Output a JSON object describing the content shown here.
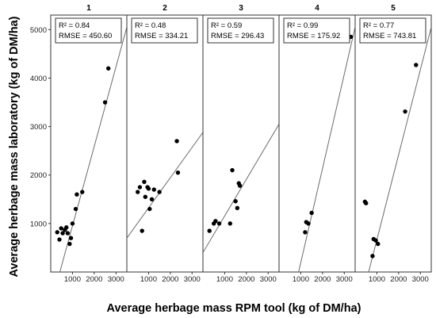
{
  "figure": {
    "ylabel": "Average herbage mass laboratory (kg of DM/ha)",
    "xlabel": "Average herbage mass RPM tool (kg of DM/ha)"
  },
  "chart_data": [
    {
      "type": "scatter",
      "title": "1",
      "annotations": [
        "R² = 0.84",
        "RMSE = 450.60"
      ],
      "xlim": [
        0,
        3500
      ],
      "ylim": [
        0,
        5300
      ],
      "xticks": [
        1000,
        2000,
        3000
      ],
      "yticks": [
        1000,
        2000,
        3000,
        4000,
        5000
      ],
      "points": [
        [
          300,
          820
        ],
        [
          400,
          670
        ],
        [
          480,
          900
        ],
        [
          550,
          800
        ],
        [
          650,
          870
        ],
        [
          720,
          920
        ],
        [
          780,
          800
        ],
        [
          870,
          580
        ],
        [
          930,
          700
        ],
        [
          1000,
          1000
        ],
        [
          1150,
          1300
        ],
        [
          1200,
          1600
        ],
        [
          1450,
          1650
        ],
        [
          2500,
          3500
        ],
        [
          2650,
          4200
        ]
      ],
      "fit_line": [
        [
          420,
          0
        ],
        [
          3500,
          5050
        ]
      ]
    },
    {
      "type": "scatter",
      "title": "2",
      "annotations": [
        "R² = 0.48",
        "RMSE = 334.21"
      ],
      "xlim": [
        0,
        3500
      ],
      "ylim": [
        0,
        5300
      ],
      "xticks": [
        1000,
        2000,
        3000
      ],
      "points": [
        [
          500,
          1650
        ],
        [
          600,
          1750
        ],
        [
          700,
          850
        ],
        [
          800,
          1860
        ],
        [
          850,
          1550
        ],
        [
          950,
          1750
        ],
        [
          1000,
          1720
        ],
        [
          1050,
          1300
        ],
        [
          1150,
          1500
        ],
        [
          1250,
          1700
        ],
        [
          1500,
          1650
        ],
        [
          2300,
          2700
        ],
        [
          2350,
          2050
        ]
      ],
      "fit_line": [
        [
          0,
          700
        ],
        [
          3500,
          2880
        ]
      ]
    },
    {
      "type": "scatter",
      "title": "3",
      "annotations": [
        "R² = 0.59",
        "RMSE = 296.43"
      ],
      "xlim": [
        0,
        3500
      ],
      "ylim": [
        0,
        5300
      ],
      "xticks": [
        1000,
        2000,
        3000
      ],
      "points": [
        [
          300,
          850
        ],
        [
          500,
          1000
        ],
        [
          580,
          1050
        ],
        [
          750,
          1000
        ],
        [
          1250,
          1000
        ],
        [
          1350,
          2100
        ],
        [
          1500,
          1460
        ],
        [
          1580,
          1320
        ],
        [
          1650,
          1830
        ],
        [
          1700,
          1780
        ]
      ],
      "fit_line": [
        [
          0,
          400
        ],
        [
          3500,
          3050
        ]
      ]
    },
    {
      "type": "scatter",
      "title": "4",
      "annotations": [
        "R² = 0.99",
        "RMSE = 175.92"
      ],
      "xlim": [
        0,
        3500
      ],
      "ylim": [
        0,
        5300
      ],
      "xticks": [
        1000,
        2000,
        3000
      ],
      "points": [
        [
          1200,
          820
        ],
        [
          1250,
          1030
        ],
        [
          1350,
          1000
        ],
        [
          1500,
          1220
        ],
        [
          3300,
          4850
        ]
      ],
      "fit_line": [
        [
          900,
          0
        ],
        [
          3500,
          5050
        ]
      ]
    },
    {
      "type": "scatter",
      "title": "5",
      "annotations": [
        "R² = 0.77",
        "RMSE = 743.81"
      ],
      "xlim": [
        0,
        3500
      ],
      "ylim": [
        0,
        5300
      ],
      "xticks": [
        1000,
        2000,
        3000
      ],
      "points": [
        [
          450,
          1450
        ],
        [
          500,
          1420
        ],
        [
          800,
          330
        ],
        [
          850,
          680
        ],
        [
          950,
          650
        ],
        [
          1050,
          580
        ],
        [
          2300,
          3310
        ],
        [
          2800,
          4270
        ]
      ],
      "fit_line": [
        [
          620,
          0
        ],
        [
          3500,
          5050
        ]
      ]
    }
  ]
}
